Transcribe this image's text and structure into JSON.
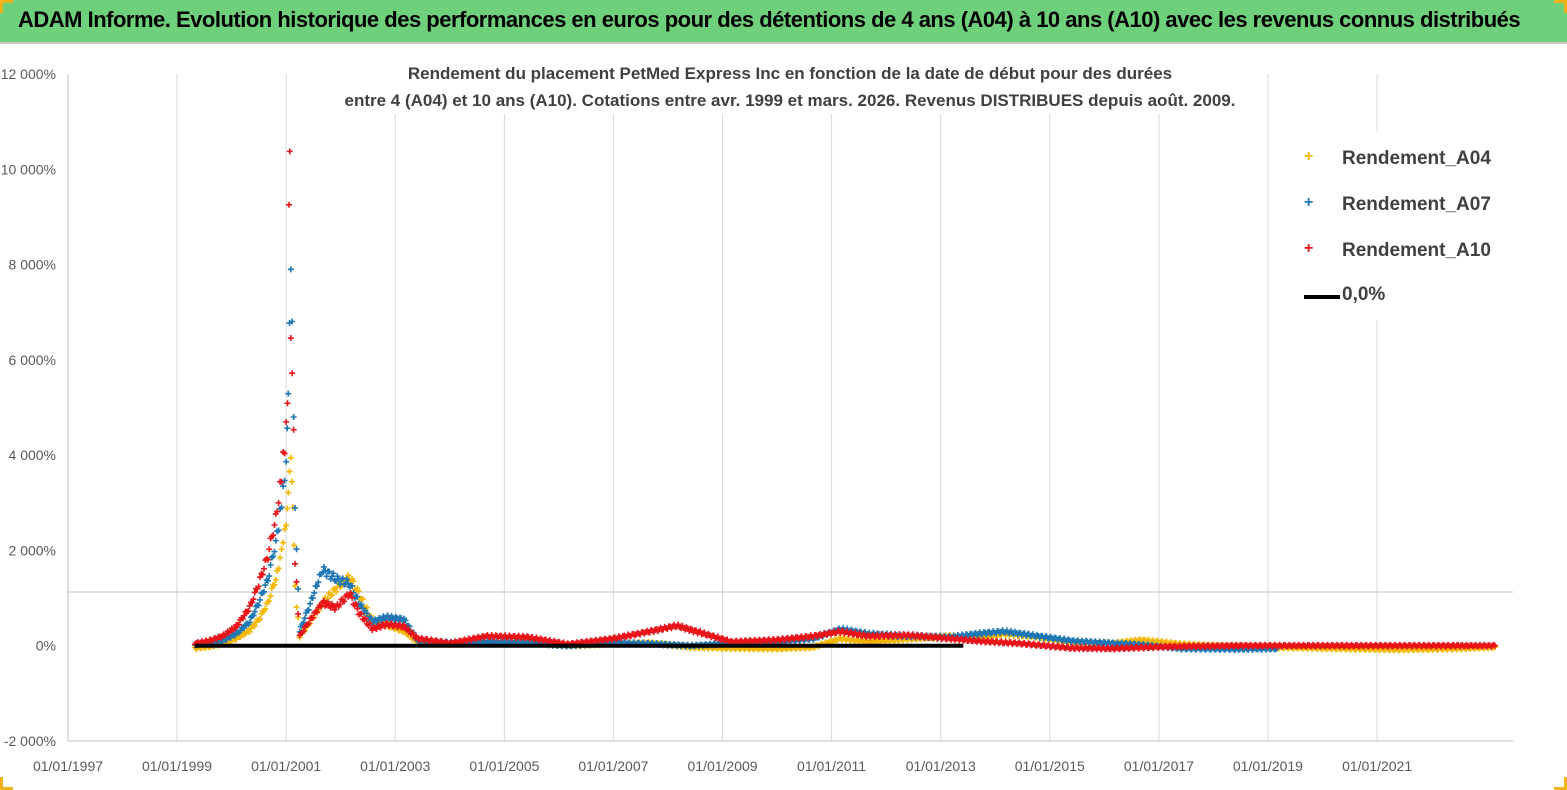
{
  "header": {
    "title": "ADAM Informe. Evolution historique des performances en euros pour des détentions de 4 ans (A04) à 10 ans (A10) avec les revenus connus distribués"
  },
  "chart_data": {
    "type": "scatter",
    "title_line1": "Rendement du placement PetMed Express Inc en fonction de la date de début pour des durées",
    "title_line2": "entre 4 (A04) et 10 ans (A10). Cotations entre avr. 1999 et mars. 2026. Revenus DISTRIBUES depuis août. 2009.",
    "xlabel": "",
    "ylabel": "",
    "xlim": [
      "1997-01-01",
      "2023-06-30"
    ],
    "ylim": [
      -2000,
      12000
    ],
    "y_tick_labels": [
      "-2 000%",
      "0%",
      "2 000%",
      "4 000%",
      "6 000%",
      "8 000%",
      "10 000%",
      "12 000%"
    ],
    "y_tick_values": [
      -2000,
      0,
      2000,
      4000,
      6000,
      8000,
      10000,
      12000
    ],
    "x_tick_labels": [
      "01/01/1997",
      "01/01/1999",
      "01/01/2001",
      "01/01/2003",
      "01/01/2005",
      "01/01/2007",
      "01/01/2009",
      "01/01/2011",
      "01/01/2013",
      "01/01/2015",
      "01/01/2017",
      "01/01/2019",
      "01/01/2021"
    ],
    "x_tick_values": [
      "1997-01-01",
      "1999-01-01",
      "2001-01-01",
      "2003-01-01",
      "2005-01-01",
      "2007-01-01",
      "2009-01-01",
      "2011-01-01",
      "2013-01-01",
      "2015-01-01",
      "2017-01-01",
      "2019-01-01",
      "2021-01-01"
    ],
    "grid": "vertical",
    "legend_position": "top-right",
    "series": [
      {
        "name": "Rendement_A04",
        "color": "#f5b800",
        "marker": "plus",
        "points": [
          [
            "1999-05-01",
            -50
          ],
          [
            "1999-08-01",
            -20
          ],
          [
            "1999-11-01",
            40
          ],
          [
            "2000-02-01",
            150
          ],
          [
            "2000-05-01",
            320
          ],
          [
            "2000-07-01",
            550
          ],
          [
            "2000-09-01",
            900
          ],
          [
            "2000-11-01",
            1500
          ],
          [
            "2000-12-01",
            2000
          ],
          [
            "2001-01-01",
            2600
          ],
          [
            "2001-01-15",
            3300
          ],
          [
            "2001-02-01",
            3800
          ],
          [
            "2001-02-15",
            2800
          ],
          [
            "2001-03-01",
            1200
          ],
          [
            "2001-04-01",
            200
          ],
          [
            "2001-06-01",
            450
          ],
          [
            "2001-09-01",
            900
          ],
          [
            "2001-12-01",
            1200
          ],
          [
            "2002-03-01",
            1450
          ],
          [
            "2002-05-01",
            1100
          ],
          [
            "2002-08-01",
            500
          ],
          [
            "2002-11-01",
            450
          ],
          [
            "2003-03-01",
            300
          ],
          [
            "2003-06-01",
            80
          ],
          [
            "2004-01-01",
            40
          ],
          [
            "2004-09-01",
            60
          ],
          [
            "2005-06-01",
            100
          ],
          [
            "2006-03-01",
            0
          ],
          [
            "2007-01-01",
            40
          ],
          [
            "2007-09-01",
            60
          ],
          [
            "2008-06-01",
            -30
          ],
          [
            "2009-03-01",
            -50
          ],
          [
            "2010-01-01",
            -60
          ],
          [
            "2010-09-01",
            -30
          ],
          [
            "2011-03-01",
            150
          ],
          [
            "2011-09-01",
            80
          ],
          [
            "2012-06-01",
            140
          ],
          [
            "2013-03-01",
            200
          ],
          [
            "2013-09-01",
            150
          ],
          [
            "2014-03-01",
            250
          ],
          [
            "2014-09-01",
            200
          ],
          [
            "2015-06-01",
            60
          ],
          [
            "2016-03-01",
            50
          ],
          [
            "2016-09-01",
            120
          ],
          [
            "2017-06-01",
            30
          ],
          [
            "2018-06-01",
            -20
          ],
          [
            "2019-06-01",
            -40
          ],
          [
            "2020-06-01",
            -60
          ],
          [
            "2021-06-01",
            -80
          ],
          [
            "2022-06-01",
            -60
          ],
          [
            "2023-03-01",
            -30
          ]
        ]
      },
      {
        "name": "Rendement_A07",
        "color": "#1f77b4",
        "marker": "plus",
        "points": [
          [
            "1999-05-01",
            20
          ],
          [
            "1999-08-01",
            60
          ],
          [
            "1999-11-01",
            100
          ],
          [
            "2000-02-01",
            250
          ],
          [
            "2000-05-01",
            500
          ],
          [
            "2000-07-01",
            900
          ],
          [
            "2000-09-01",
            1400
          ],
          [
            "2000-11-01",
            2300
          ],
          [
            "2000-12-01",
            3000
          ],
          [
            "2001-01-01",
            3800
          ],
          [
            "2001-01-15",
            5200
          ],
          [
            "2001-02-01",
            7900
          ],
          [
            "2001-02-10",
            7100
          ],
          [
            "2001-02-20",
            4600
          ],
          [
            "2001-03-01",
            2900
          ],
          [
            "2001-04-01",
            300
          ],
          [
            "2001-06-01",
            800
          ],
          [
            "2001-09-01",
            1600
          ],
          [
            "2001-12-01",
            1400
          ],
          [
            "2002-03-01",
            1300
          ],
          [
            "2002-05-01",
            900
          ],
          [
            "2002-08-01",
            500
          ],
          [
            "2002-11-01",
            600
          ],
          [
            "2003-03-01",
            550
          ],
          [
            "2003-06-01",
            100
          ],
          [
            "2004-01-01",
            60
          ],
          [
            "2004-09-01",
            80
          ],
          [
            "2005-06-01",
            60
          ],
          [
            "2006-03-01",
            0
          ],
          [
            "2007-01-01",
            60
          ],
          [
            "2007-09-01",
            40
          ],
          [
            "2008-06-01",
            0
          ],
          [
            "2009-03-01",
            50
          ],
          [
            "2010-01-01",
            80
          ],
          [
            "2010-09-01",
            150
          ],
          [
            "2011-03-01",
            350
          ],
          [
            "2011-09-01",
            250
          ],
          [
            "2012-06-01",
            200
          ],
          [
            "2013-03-01",
            180
          ],
          [
            "2013-09-01",
            250
          ],
          [
            "2014-03-01",
            300
          ],
          [
            "2014-09-01",
            220
          ],
          [
            "2015-06-01",
            100
          ],
          [
            "2016-03-01",
            50
          ],
          [
            "2016-09-01",
            20
          ],
          [
            "2017-06-01",
            -60
          ],
          [
            "2018-06-01",
            -70
          ],
          [
            "2019-03-01",
            -60
          ]
        ]
      },
      {
        "name": "Rendement_A10",
        "color": "#e8141a",
        "marker": "plus",
        "points": [
          [
            "1999-05-01",
            50
          ],
          [
            "1999-08-01",
            100
          ],
          [
            "1999-11-01",
            200
          ],
          [
            "2000-02-01",
            400
          ],
          [
            "2000-05-01",
            800
          ],
          [
            "2000-07-01",
            1300
          ],
          [
            "2000-09-01",
            1900
          ],
          [
            "2000-11-01",
            2800
          ],
          [
            "2000-12-01",
            3600
          ],
          [
            "2001-01-01",
            4500
          ],
          [
            "2001-01-10",
            5100
          ],
          [
            "2001-01-20",
            9400
          ],
          [
            "2001-01-25",
            10750
          ],
          [
            "2001-02-01",
            6700
          ],
          [
            "2001-02-10",
            5800
          ],
          [
            "2001-02-20",
            4400
          ],
          [
            "2001-03-01",
            1800
          ],
          [
            "2001-04-01",
            200
          ],
          [
            "2001-06-01",
            500
          ],
          [
            "2001-09-01",
            900
          ],
          [
            "2001-12-01",
            800
          ],
          [
            "2002-03-01",
            1100
          ],
          [
            "2002-05-01",
            700
          ],
          [
            "2002-08-01",
            350
          ],
          [
            "2002-11-01",
            450
          ],
          [
            "2003-03-01",
            400
          ],
          [
            "2003-06-01",
            150
          ],
          [
            "2004-01-01",
            50
          ],
          [
            "2004-09-01",
            200
          ],
          [
            "2005-06-01",
            180
          ],
          [
            "2006-03-01",
            30
          ],
          [
            "2007-01-01",
            150
          ],
          [
            "2007-09-01",
            300
          ],
          [
            "2008-03-01",
            420
          ],
          [
            "2008-09-01",
            250
          ],
          [
            "2009-03-01",
            80
          ],
          [
            "2010-01-01",
            120
          ],
          [
            "2010-09-01",
            200
          ],
          [
            "2011-03-01",
            300
          ],
          [
            "2011-09-01",
            200
          ],
          [
            "2012-06-01",
            220
          ],
          [
            "2013-03-01",
            150
          ],
          [
            "2013-09-01",
            100
          ],
          [
            "2014-06-01",
            50
          ],
          [
            "2015-06-01",
            -50
          ],
          [
            "2016-03-01",
            -60
          ],
          [
            "2017-03-01",
            -20
          ],
          [
            "2018-06-01",
            0
          ],
          [
            "2019-06-01",
            0
          ],
          [
            "2020-06-01",
            0
          ],
          [
            "2021-06-01",
            0
          ],
          [
            "2022-06-01",
            0
          ],
          [
            "2023-03-01",
            0
          ]
        ]
      },
      {
        "name": "0,0%",
        "color": "#000000",
        "marker": "line",
        "points": [
          [
            "1999-05-01",
            0
          ],
          [
            "2013-06-01",
            0
          ]
        ]
      }
    ]
  }
}
